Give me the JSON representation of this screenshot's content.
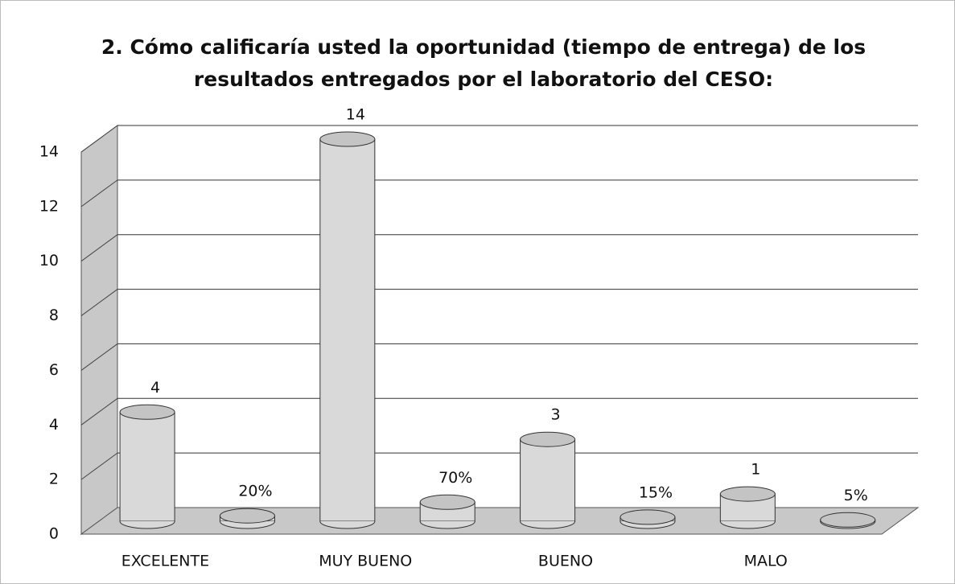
{
  "chart_data": {
    "type": "bar3d",
    "title": "2. Cómo calificaría usted la oportunidad (tiempo de entrega) de los resultados entregados por el laboratorio del CESO:",
    "categories": [
      "EXCELENTE",
      "MUY BUENO",
      "BUENO",
      "MALO"
    ],
    "series": [
      {
        "color": "#d9d9d9",
        "values": [
          4,
          14,
          3,
          1
        ]
      },
      {
        "color": "#d9d9d9",
        "values": [
          0.2,
          0.7,
          0.15,
          0.05
        ],
        "value_labels": [
          "20%",
          "70%",
          "15%",
          "5%"
        ]
      }
    ],
    "ylim": [
      0,
      14
    ],
    "yticks": [
      0,
      2,
      4,
      6,
      8,
      10,
      12,
      14
    ],
    "grid": true
  }
}
